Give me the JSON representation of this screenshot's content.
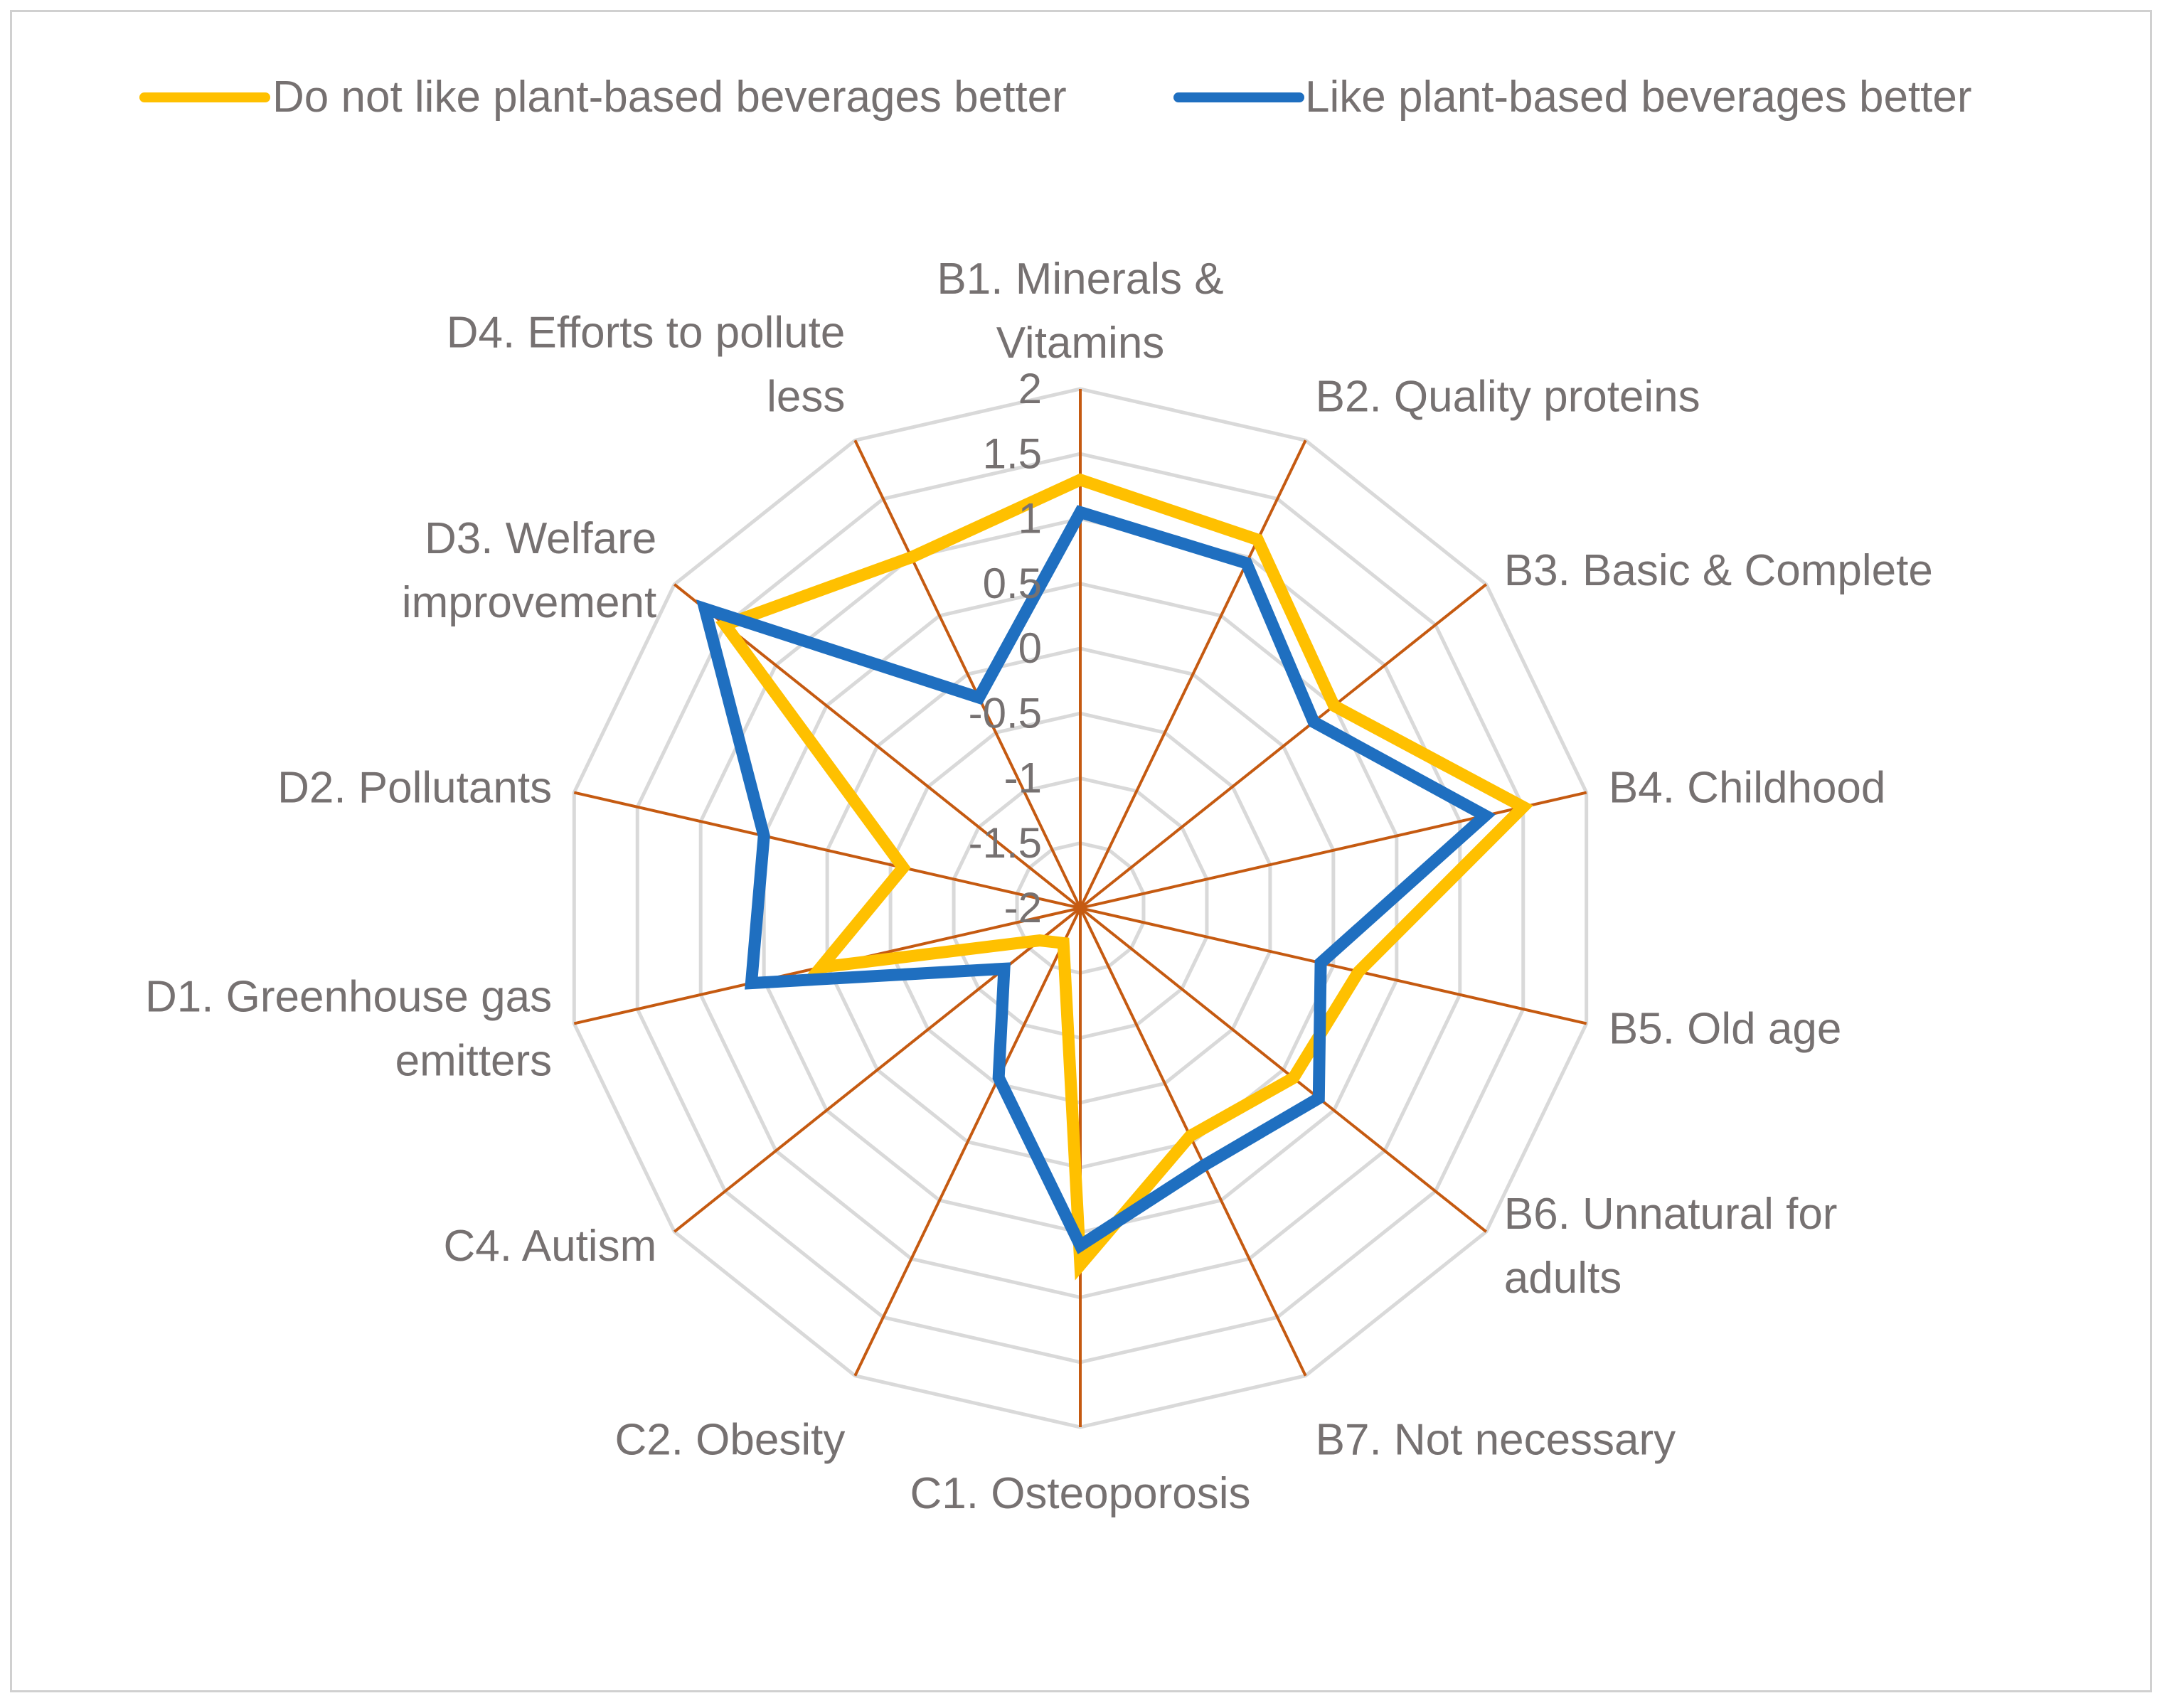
{
  "chart_data": {
    "type": "radar",
    "title": "",
    "axis_range": [
      -2,
      2
    ],
    "axis_step": 0.5,
    "ticks": [
      "2",
      "1.5",
      "1",
      "0.5",
      "0",
      "-0.5",
      "-1",
      "-1.5",
      "-2"
    ],
    "categories": [
      [
        "B1. Minerals &",
        "Vitamins"
      ],
      [
        "B2. Quality proteins"
      ],
      [
        "B3. Basic & Complete"
      ],
      [
        "B4. Childhood"
      ],
      [
        "B5. Old age"
      ],
      [
        "B6. Unnatural for",
        "adults"
      ],
      [
        "B7. Not necessary"
      ],
      [
        "C1. Osteoporosis"
      ],
      [
        "C2. Obesity"
      ],
      [
        "C4. Autism"
      ],
      [
        "D1. Greenhouse gas",
        "emitters"
      ],
      [
        "D2. Pollutants"
      ],
      [
        "D3. Welfare",
        "improvement"
      ],
      [
        "D4. Efforts to pollute",
        "less"
      ]
    ],
    "series": [
      {
        "name": "Do not like plant-based beverages better",
        "color": "#FFC000",
        "values": [
          1.3,
          1.15,
          0.5,
          1.5,
          0.2,
          0.1,
          -0.05,
          0.75,
          -1.7,
          -1.6,
          0.05,
          -0.6,
          1.5,
          1.0
        ]
      },
      {
        "name": "Like plant-based beverages better",
        "color": "#1F6FC0",
        "values": [
          1.05,
          0.95,
          0.3,
          1.2,
          -0.1,
          0.35,
          0.2,
          0.6,
          -0.55,
          -1.25,
          0.6,
          0.5,
          1.7,
          -0.2
        ]
      }
    ],
    "legend_position": "top",
    "grid_color": "#D9D9D9",
    "spoke_color": "#C55A11"
  }
}
